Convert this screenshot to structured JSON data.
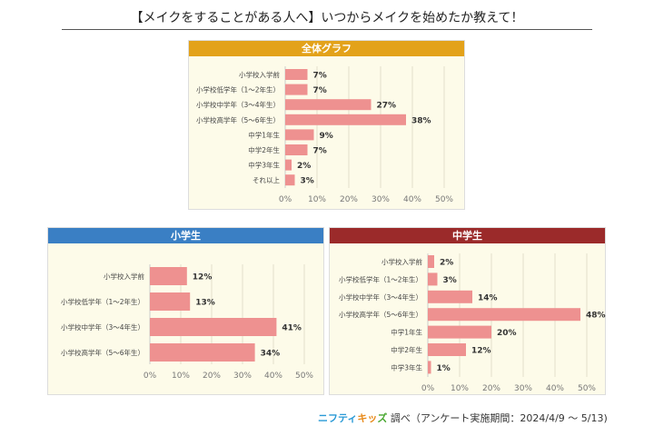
{
  "title": "【メイクをすることがある人へ】いつからメイクを始めたか教えて！",
  "footer": {
    "logo": "ニフティキッズ",
    "logo_parts": [
      "ニフティ",
      "キッ",
      "ズ"
    ],
    "text": "調べ（アンケート実施期間：2024/4/9 ～ 5/13)"
  },
  "chart_data": [
    {
      "type": "bar",
      "title": "全体グラフ",
      "header_color": "#e3a21a",
      "bar_color": "#ee9190",
      "categories": [
        "小学校入学前",
        "小学校低学年（1～2年生）",
        "小学校中学年（3～4年生）",
        "小学校高学年（5～6年生）",
        "中学1年生",
        "中学2年生",
        "中学3年生",
        "それ以上"
      ],
      "values": [
        7,
        7,
        27,
        38,
        9,
        7,
        2,
        3
      ],
      "xlim": [
        0,
        50
      ],
      "xticks": [
        "0%",
        "10%",
        "20%",
        "30%",
        "40%",
        "50%"
      ],
      "grid": true
    },
    {
      "type": "bar",
      "title": "小学生",
      "header_color": "#3a7fc4",
      "bar_color": "#ee9190",
      "categories": [
        "小学校入学前",
        "小学校低学年（1～2年生）",
        "小学校中学年（3～4年生）",
        "小学校高学年（5～6年生）"
      ],
      "values": [
        12,
        13,
        41,
        34
      ],
      "xlim": [
        0,
        50
      ],
      "xticks": [
        "0%",
        "10%",
        "20%",
        "30%",
        "40%",
        "50%"
      ],
      "grid": true
    },
    {
      "type": "bar",
      "title": "中学生",
      "header_color": "#9b2a2a",
      "bar_color": "#ee9190",
      "categories": [
        "小学校入学前",
        "小学校低学年（1～2年生）",
        "小学校中学年（3～4年生）",
        "小学校高学年（5～6年生）",
        "中学1年生",
        "中学2年生",
        "中学3年生"
      ],
      "values": [
        2,
        3,
        14,
        48,
        20,
        12,
        1
      ],
      "xlim": [
        0,
        50
      ],
      "xticks": [
        "0%",
        "10%",
        "20%",
        "30%",
        "40%",
        "50%"
      ],
      "grid": true
    }
  ]
}
